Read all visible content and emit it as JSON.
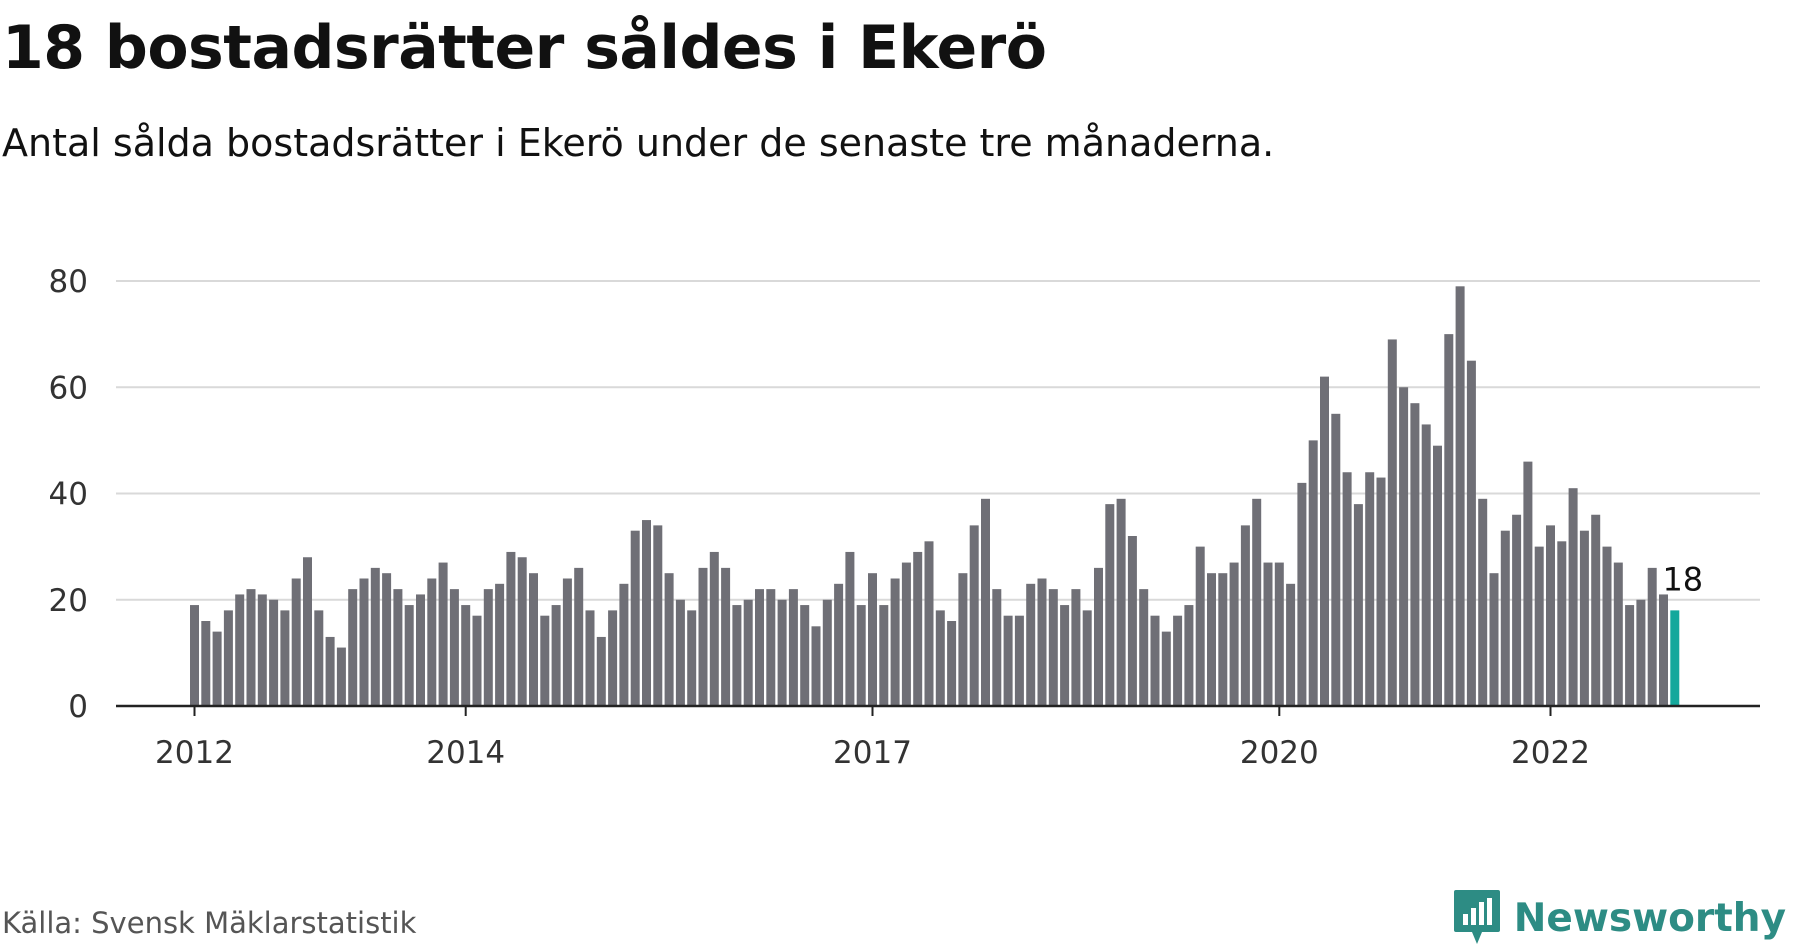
{
  "title": "18 bostadsrätter såldes i Ekerö",
  "subtitle": "Antal sålda bostadsrätter i Ekerö under de senaste tre månaderna.",
  "source": "Källa: Svensk Mäklarstatistik",
  "brand": {
    "name": "Newsworthy",
    "icon": "newsworthy-logo-icon"
  },
  "colors": {
    "bar": "#6f6f76",
    "highlight": "#14a89c",
    "grid": "#d9d9d9",
    "axis": "#222222",
    "brand": "#2d8c84"
  },
  "chart_data": {
    "type": "bar",
    "y_ticks": [
      "0",
      "20",
      "40",
      "60",
      "80"
    ],
    "ylim": [
      0,
      80
    ],
    "x_ticks": [
      {
        "label": "2012",
        "index": 0
      },
      {
        "label": "2014",
        "index": 24
      },
      {
        "label": "2017",
        "index": 60
      },
      {
        "label": "2020",
        "index": 96
      },
      {
        "label": "2022",
        "index": 120
      }
    ],
    "values": [
      19,
      16,
      14,
      18,
      21,
      22,
      21,
      20,
      18,
      24,
      28,
      18,
      13,
      11,
      22,
      24,
      26,
      25,
      22,
      19,
      21,
      24,
      27,
      22,
      19,
      17,
      22,
      23,
      29,
      28,
      25,
      17,
      19,
      24,
      26,
      18,
      13,
      18,
      23,
      33,
      35,
      34,
      25,
      20,
      18,
      26,
      29,
      26,
      19,
      20,
      22,
      22,
      20,
      22,
      19,
      15,
      20,
      23,
      29,
      19,
      25,
      19,
      24,
      27,
      29,
      31,
      18,
      16,
      25,
      34,
      39,
      22,
      17,
      17,
      23,
      24,
      22,
      19,
      22,
      18,
      26,
      38,
      39,
      32,
      22,
      17,
      14,
      17,
      19,
      30,
      25,
      25,
      27,
      34,
      39,
      27,
      27,
      23,
      42,
      50,
      62,
      55,
      44,
      38,
      44,
      43,
      69,
      60,
      57,
      53,
      49,
      70,
      79,
      65,
      39,
      25,
      33,
      36,
      46,
      30,
      34,
      31,
      41,
      33,
      36,
      30,
      27,
      19,
      20,
      26,
      21,
      18
    ],
    "highlight_index": 131,
    "highlight_label": "18",
    "grid": true
  }
}
